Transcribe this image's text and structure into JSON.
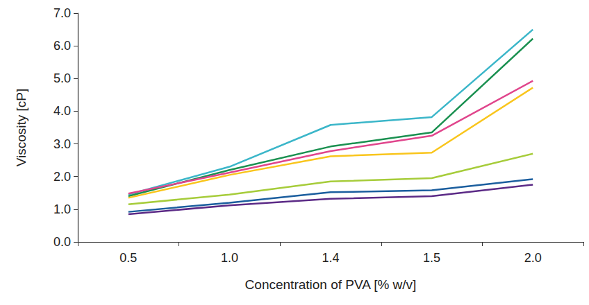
{
  "chart_data": {
    "type": "line",
    "x_label": "Concentration of PVA [% w/v]",
    "y_label": "Viscosity [cP]",
    "categories": [
      "0.5",
      "1.0",
      "1.4",
      "1.5",
      "2.0"
    ],
    "series": [
      {
        "color": "#3bb6c9",
        "values": [
          1.45,
          2.3,
          3.58,
          3.82,
          6.5
        ]
      },
      {
        "color": "#1a9050",
        "values": [
          1.4,
          2.2,
          2.92,
          3.35,
          6.22
        ]
      },
      {
        "color": "#e0458c",
        "values": [
          1.48,
          2.12,
          2.78,
          3.25,
          4.93
        ]
      },
      {
        "color": "#f9c51c",
        "values": [
          1.35,
          2.05,
          2.62,
          2.73,
          4.72
        ]
      },
      {
        "color": "#a6cc3a",
        "values": [
          1.15,
          1.45,
          1.85,
          1.95,
          2.7
        ]
      },
      {
        "color": "#1b5e9e",
        "values": [
          0.92,
          1.2,
          1.52,
          1.58,
          1.92
        ]
      },
      {
        "color": "#5b2a86",
        "values": [
          0.85,
          1.12,
          1.32,
          1.4,
          1.75
        ]
      }
    ],
    "ylim": [
      0,
      7
    ],
    "yticks": [
      {
        "value": 0,
        "label": "0.0"
      },
      {
        "value": 1,
        "label": "1.0"
      },
      {
        "value": 2,
        "label": "2.0"
      },
      {
        "value": 3,
        "label": "3.0"
      },
      {
        "value": 4,
        "label": "4.0"
      },
      {
        "value": 5,
        "label": "5.0"
      },
      {
        "value": 6,
        "label": "6.0"
      },
      {
        "value": 7,
        "label": "7.0"
      }
    ],
    "grid": false
  }
}
